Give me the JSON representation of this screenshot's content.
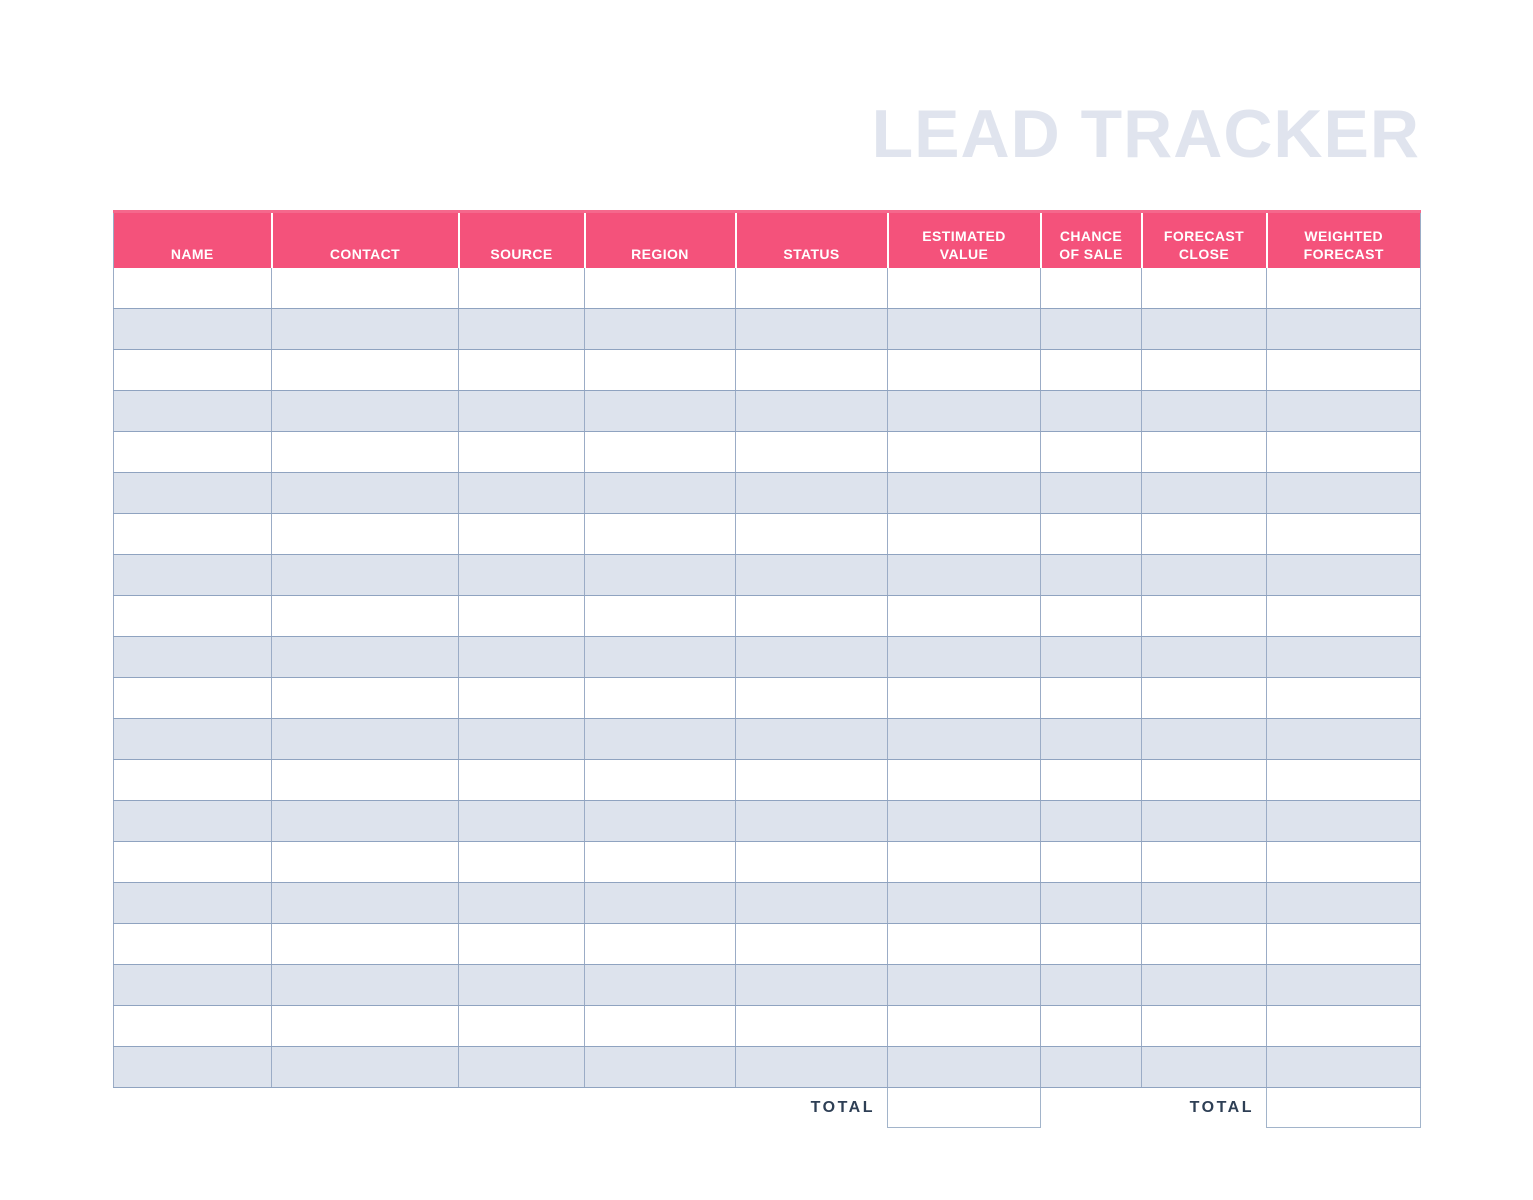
{
  "page": {
    "title": "LEAD TRACKER",
    "background_color": "#FFFFFF",
    "title_color": "#E0E4EE"
  },
  "table": {
    "columns": [
      {
        "id": "name",
        "label": "NAME"
      },
      {
        "id": "contact",
        "label": "CONTACT"
      },
      {
        "id": "source",
        "label": "SOURCE"
      },
      {
        "id": "region",
        "label": "REGION"
      },
      {
        "id": "status",
        "label": "STATUS"
      },
      {
        "id": "estimated_value",
        "label": "ESTIMATED\nVALUE"
      },
      {
        "id": "chance_of_sale",
        "label": "CHANCE\nOF SALE"
      },
      {
        "id": "forecast_close",
        "label": "FORECAST\nCLOSE"
      },
      {
        "id": "weighted_forecast",
        "label": "WEIGHTED\nFORECAST"
      }
    ],
    "row_count": 20,
    "highlight_cell": {
      "row_index": 3,
      "col_index": 0
    },
    "colors": {
      "header_bg": "#F4527B",
      "header_top": "#F5688C",
      "header_text": "#FFFFFF",
      "row_bg": "#FFFFFF",
      "alt_row_bg": "#DDE3ED",
      "highlight_cell_bg": "#E7EBF3",
      "grid_horizontal": "#8FA3C0",
      "grid_vertical": "#9BACC6",
      "total_text": "#2E3F55",
      "total_box_border": "#A2B4CA"
    }
  },
  "totals": {
    "estimated_value": {
      "label": "TOTAL",
      "value": ""
    },
    "weighted_forecast": {
      "label": "TOTAL",
      "value": ""
    }
  }
}
